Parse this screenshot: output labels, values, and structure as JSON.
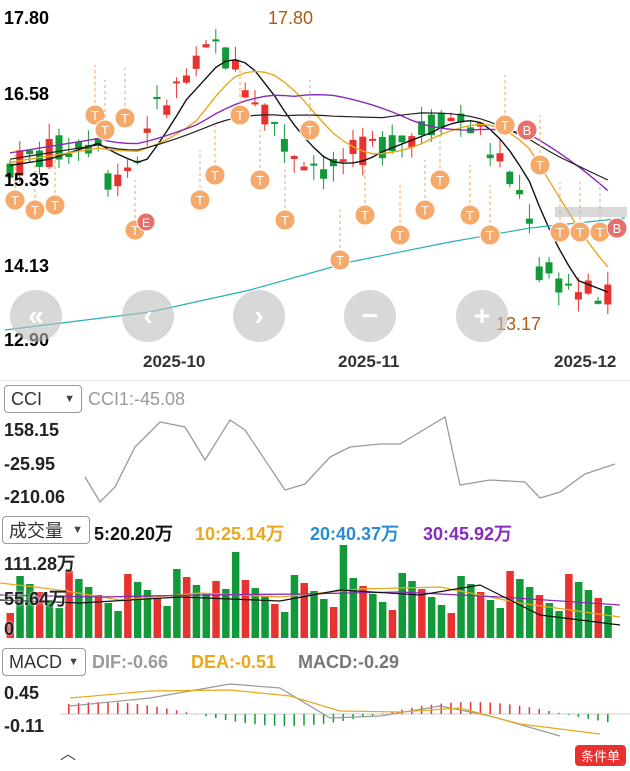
{
  "price_axis": {
    "labels": [
      {
        "text": "17.80",
        "color": "#d23a3a"
      },
      {
        "text": "16.58",
        "color": "#d23a3a"
      },
      {
        "text": "15.35",
        "color": "#d23a3a"
      },
      {
        "text": "14.13",
        "color": "#d23a3a"
      },
      {
        "text": "12.90",
        "color": "#129a3a"
      }
    ],
    "high_marker": "17.80",
    "low_marker": "13.17"
  },
  "date_axis": [
    "2025-10",
    "2025-11",
    "2025-12"
  ],
  "nav_buttons": [
    {
      "name": "scroll-start-button",
      "glyph": "«"
    },
    {
      "name": "scroll-left-button",
      "glyph": "‹"
    },
    {
      "name": "scroll-right-button",
      "glyph": "›"
    },
    {
      "name": "zoom-out-button",
      "glyph": "−"
    },
    {
      "name": "zoom-in-button",
      "glyph": "+"
    }
  ],
  "markers": {
    "trade_t": "T",
    "trade_b": "B",
    "trade_e": "E"
  },
  "cci": {
    "selector": "CCI",
    "value_label": "CCI1:-45.08",
    "axis": [
      "158.15",
      "-25.95",
      "-210.06"
    ]
  },
  "volume": {
    "selector": "成交量",
    "ma": [
      {
        "label": "5:20.20万",
        "color": "#111111"
      },
      {
        "label": "10:25.14万",
        "color": "#e8a81c"
      },
      {
        "label": "20:40.37万",
        "color": "#2a8ccf"
      },
      {
        "label": "30:45.92万",
        "color": "#8a2ab8"
      }
    ],
    "axis": [
      "111.28万",
      "55.64万",
      "0"
    ]
  },
  "macd": {
    "selector": "MACD",
    "dif": "DIF:-0.66",
    "dea": "DEA:-0.51",
    "macd": "MACD:-0.29",
    "axis": [
      "0.45",
      "-0.11"
    ]
  },
  "condition_badge": "条件单",
  "colors": {
    "up": "#e8322f",
    "down": "#129a3a",
    "ma5": "#111111",
    "ma10": "#e8a81c",
    "ma20": "#2a8ccf",
    "ma30": "#8a2ab8",
    "ma60": "#222222",
    "ma120": "#2ab0b8"
  }
}
